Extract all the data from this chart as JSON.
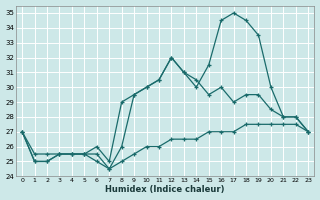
{
  "title": "",
  "xlabel": "Humidex (Indice chaleur)",
  "ylabel": "",
  "bg_color": "#cde8e8",
  "grid_color": "#ffffff",
  "line_color": "#1a6b6b",
  "xlim": [
    -0.5,
    23.5
  ],
  "ylim": [
    24,
    35.5
  ],
  "yticks": [
    24,
    25,
    26,
    27,
    28,
    29,
    30,
    31,
    32,
    33,
    34,
    35
  ],
  "xticks": [
    0,
    1,
    2,
    3,
    4,
    5,
    6,
    7,
    8,
    9,
    10,
    11,
    12,
    13,
    14,
    15,
    16,
    17,
    18,
    19,
    20,
    21,
    22,
    23
  ],
  "series": [
    [
      27,
      25,
      25,
      25.5,
      25.5,
      25.5,
      25,
      24.5,
      25,
      25.5,
      26,
      26,
      26.5,
      26.5,
      26.5,
      27,
      27,
      27,
      27.5,
      27.5,
      27.5,
      27.5,
      27.5,
      27
    ],
    [
      27,
      25,
      25,
      25.5,
      25.5,
      25.5,
      25.5,
      24.5,
      26,
      29.5,
      30,
      30.5,
      32,
      31,
      30.5,
      29.5,
      30,
      29,
      29.5,
      29.5,
      28.5,
      28,
      28,
      27
    ],
    [
      27,
      25.5,
      25.5,
      25.5,
      25.5,
      25.5,
      26,
      25,
      29,
      29.5,
      30,
      30.5,
      32,
      31,
      30,
      31.5,
      34.5,
      35,
      34.5,
      33.5,
      30,
      28,
      28,
      27
    ]
  ]
}
